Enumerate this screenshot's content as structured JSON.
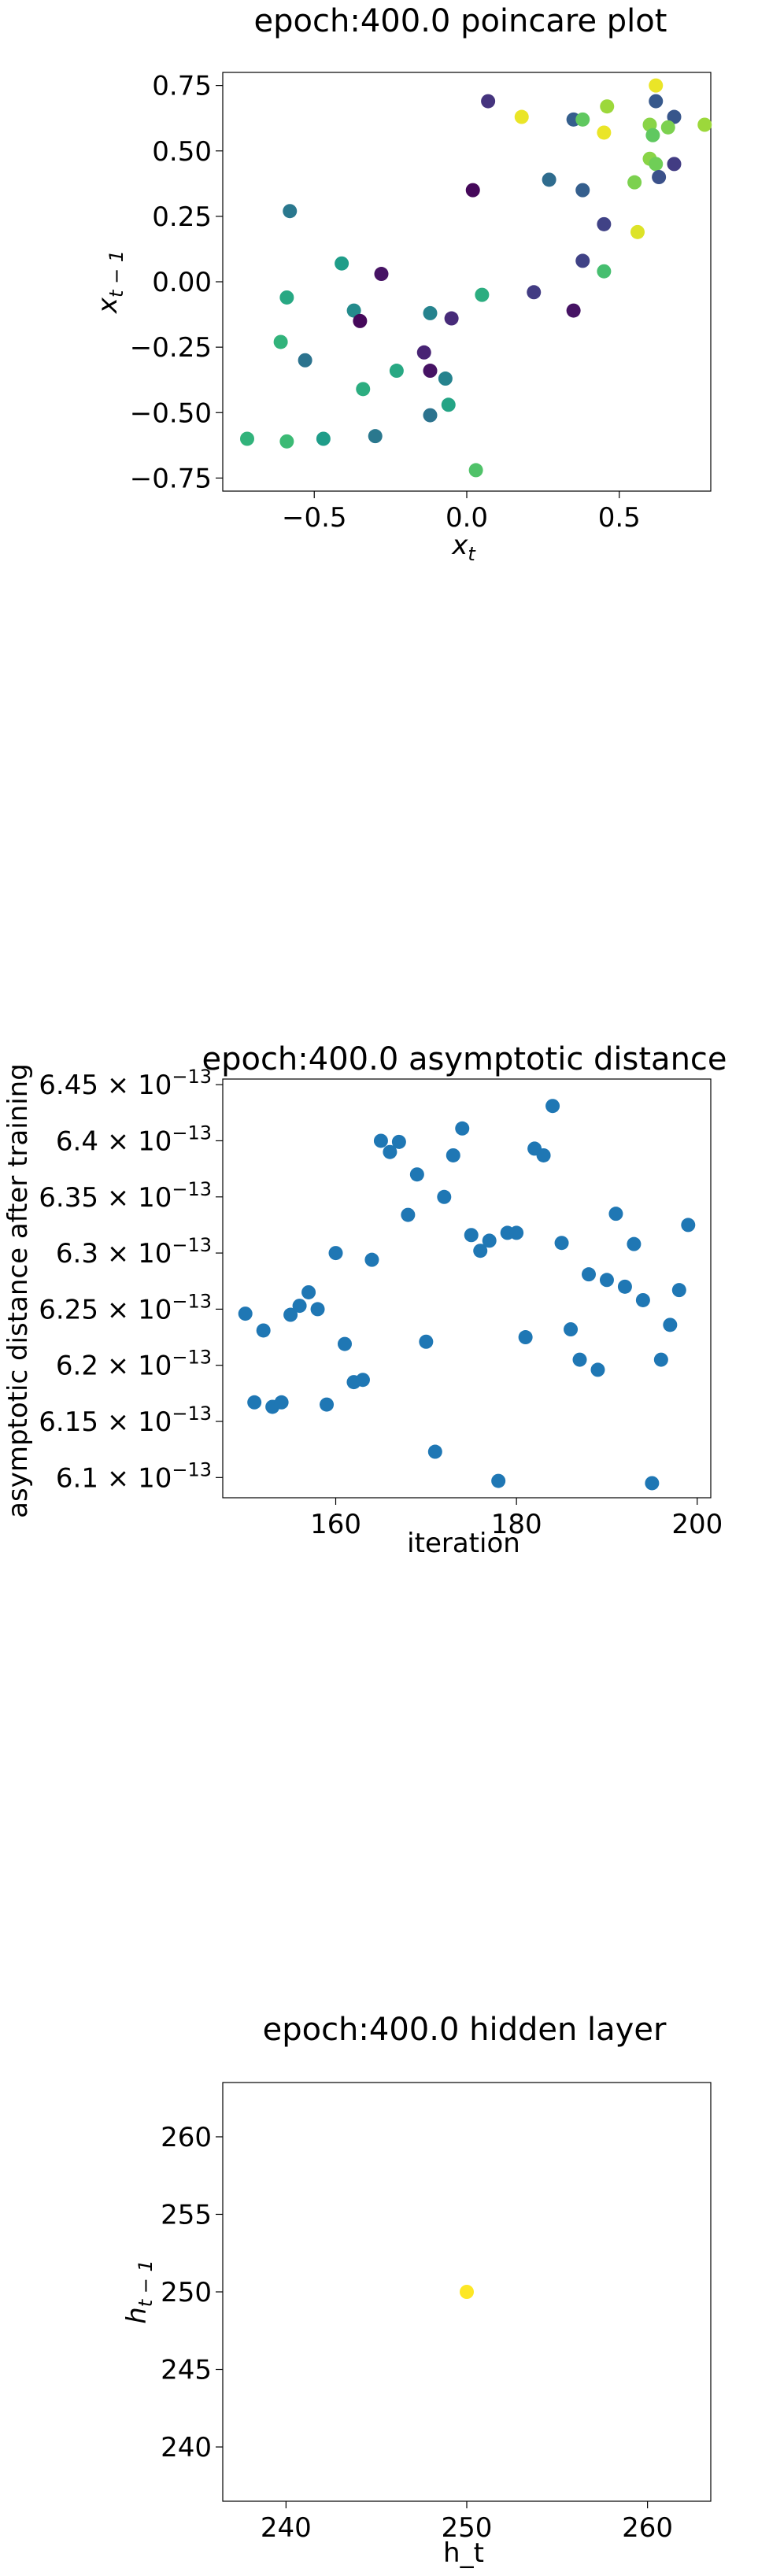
{
  "chart_data": [
    {
      "type": "scatter",
      "title": "epoch:400.0 poincare plot",
      "xlabel": "x_t",
      "ylabel": "x_{t-1}",
      "xlim": [
        -0.8,
        0.8
      ],
      "ylim": [
        -0.8,
        0.8
      ],
      "x_ticks": [
        -0.5,
        0.0,
        0.5
      ],
      "x_tick_labels": [
        "−0.5",
        "0.0",
        "0.5"
      ],
      "y_ticks": [
        0.75,
        0.5,
        0.25,
        0.0,
        -0.25,
        -0.5,
        -0.75
      ],
      "y_tick_labels": [
        "0.75",
        "0.50",
        "0.25",
        "0.00",
        "−0.25",
        "−0.50",
        "−0.75"
      ],
      "colormap": "viridis",
      "points": [
        {
          "x": 0.07,
          "y": 0.69,
          "c": 0.15
        },
        {
          "x": 0.18,
          "y": 0.63,
          "c": 0.97
        },
        {
          "x": 0.35,
          "y": 0.62,
          "c": 0.3
        },
        {
          "x": 0.38,
          "y": 0.62,
          "c": 0.75
        },
        {
          "x": 0.46,
          "y": 0.67,
          "c": 0.85
        },
        {
          "x": 0.45,
          "y": 0.57,
          "c": 0.97
        },
        {
          "x": 0.62,
          "y": 0.75,
          "c": 0.97
        },
        {
          "x": 0.62,
          "y": 0.69,
          "c": 0.28
        },
        {
          "x": 0.68,
          "y": 0.63,
          "c": 0.27
        },
        {
          "x": 0.6,
          "y": 0.6,
          "c": 0.82
        },
        {
          "x": 0.66,
          "y": 0.59,
          "c": 0.8
        },
        {
          "x": 0.78,
          "y": 0.6,
          "c": 0.85
        },
        {
          "x": 0.61,
          "y": 0.56,
          "c": 0.75
        },
        {
          "x": 0.6,
          "y": 0.47,
          "c": 0.82
        },
        {
          "x": 0.62,
          "y": 0.45,
          "c": 0.78
        },
        {
          "x": 0.68,
          "y": 0.45,
          "c": 0.18
        },
        {
          "x": 0.63,
          "y": 0.4,
          "c": 0.25
        },
        {
          "x": 0.55,
          "y": 0.38,
          "c": 0.8
        },
        {
          "x": 0.27,
          "y": 0.39,
          "c": 0.35
        },
        {
          "x": 0.38,
          "y": 0.35,
          "c": 0.3
        },
        {
          "x": 0.02,
          "y": 0.35,
          "c": 0.02
        },
        {
          "x": 0.45,
          "y": 0.22,
          "c": 0.2
        },
        {
          "x": 0.56,
          "y": 0.19,
          "c": 0.95
        },
        {
          "x": -0.58,
          "y": 0.27,
          "c": 0.4
        },
        {
          "x": 0.38,
          "y": 0.08,
          "c": 0.2
        },
        {
          "x": 0.45,
          "y": 0.04,
          "c": 0.7
        },
        {
          "x": -0.41,
          "y": 0.07,
          "c": 0.55
        },
        {
          "x": -0.28,
          "y": 0.03,
          "c": 0.05
        },
        {
          "x": -0.59,
          "y": -0.06,
          "c": 0.6
        },
        {
          "x": 0.22,
          "y": -0.04,
          "c": 0.18
        },
        {
          "x": 0.05,
          "y": -0.05,
          "c": 0.62
        },
        {
          "x": 0.35,
          "y": -0.11,
          "c": 0.05
        },
        {
          "x": -0.37,
          "y": -0.11,
          "c": 0.48
        },
        {
          "x": -0.12,
          "y": -0.12,
          "c": 0.45
        },
        {
          "x": -0.05,
          "y": -0.14,
          "c": 0.12
        },
        {
          "x": -0.35,
          "y": -0.15,
          "c": 0.02
        },
        {
          "x": -0.61,
          "y": -0.23,
          "c": 0.65
        },
        {
          "x": -0.14,
          "y": -0.27,
          "c": 0.1
        },
        {
          "x": -0.53,
          "y": -0.3,
          "c": 0.38
        },
        {
          "x": -0.12,
          "y": -0.34,
          "c": 0.05
        },
        {
          "x": -0.23,
          "y": -0.34,
          "c": 0.6
        },
        {
          "x": -0.07,
          "y": -0.37,
          "c": 0.45
        },
        {
          "x": -0.34,
          "y": -0.41,
          "c": 0.62
        },
        {
          "x": -0.06,
          "y": -0.47,
          "c": 0.58
        },
        {
          "x": -0.12,
          "y": -0.51,
          "c": 0.38
        },
        {
          "x": -0.3,
          "y": -0.59,
          "c": 0.4
        },
        {
          "x": -0.47,
          "y": -0.6,
          "c": 0.55
        },
        {
          "x": -0.72,
          "y": -0.6,
          "c": 0.65
        },
        {
          "x": -0.59,
          "y": -0.61,
          "c": 0.68
        },
        {
          "x": 0.03,
          "y": -0.72,
          "c": 0.72
        }
      ]
    },
    {
      "type": "scatter",
      "title": "epoch:400.0 asymptotic distance",
      "xlabel": "iteration",
      "ylabel": "asymptotic distance after training",
      "xlim": [
        147.5,
        201.5
      ],
      "ylim": [
        6.082e-13,
        6.455e-13
      ],
      "x_ticks": [
        160,
        180,
        200
      ],
      "x_tick_labels": [
        "160",
        "180",
        "200"
      ],
      "y_ticks": [
        6.1e-13,
        6.15e-13,
        6.2e-13,
        6.25e-13,
        6.3e-13,
        6.35e-13,
        6.4e-13,
        6.45e-13
      ],
      "y_tick_mantissas": [
        "6.1",
        "6.15",
        "6.2",
        "6.25",
        "6.3",
        "6.35",
        "6.4",
        "6.45"
      ],
      "y_tick_exponent_base": "× 10",
      "y_tick_exponent": "−13",
      "color": "#1f77b4",
      "points": [
        {
          "x": 150,
          "y": 6.246e-13
        },
        {
          "x": 151,
          "y": 6.167e-13
        },
        {
          "x": 152,
          "y": 6.231e-13
        },
        {
          "x": 153,
          "y": 6.163e-13
        },
        {
          "x": 154,
          "y": 6.167e-13
        },
        {
          "x": 155,
          "y": 6.245e-13
        },
        {
          "x": 156,
          "y": 6.253e-13
        },
        {
          "x": 157,
          "y": 6.265e-13
        },
        {
          "x": 158,
          "y": 6.25e-13
        },
        {
          "x": 159,
          "y": 6.165e-13
        },
        {
          "x": 160,
          "y": 6.3e-13
        },
        {
          "x": 161,
          "y": 6.219e-13
        },
        {
          "x": 162,
          "y": 6.185e-13
        },
        {
          "x": 163,
          "y": 6.187e-13
        },
        {
          "x": 164,
          "y": 6.294e-13
        },
        {
          "x": 165,
          "y": 6.4e-13
        },
        {
          "x": 166,
          "y": 6.39e-13
        },
        {
          "x": 167,
          "y": 6.399e-13
        },
        {
          "x": 168,
          "y": 6.334e-13
        },
        {
          "x": 169,
          "y": 6.37e-13
        },
        {
          "x": 170,
          "y": 6.221e-13
        },
        {
          "x": 171,
          "y": 6.123e-13
        },
        {
          "x": 172,
          "y": 6.35e-13
        },
        {
          "x": 173,
          "y": 6.387e-13
        },
        {
          "x": 174,
          "y": 6.411e-13
        },
        {
          "x": 175,
          "y": 6.316e-13
        },
        {
          "x": 176,
          "y": 6.302e-13
        },
        {
          "x": 177,
          "y": 6.311e-13
        },
        {
          "x": 178,
          "y": 6.097e-13
        },
        {
          "x": 179,
          "y": 6.318e-13
        },
        {
          "x": 180,
          "y": 6.318e-13
        },
        {
          "x": 181,
          "y": 6.225e-13
        },
        {
          "x": 182,
          "y": 6.393e-13
        },
        {
          "x": 183,
          "y": 6.387e-13
        },
        {
          "x": 184,
          "y": 6.431e-13
        },
        {
          "x": 185,
          "y": 6.309e-13
        },
        {
          "x": 186,
          "y": 6.232e-13
        },
        {
          "x": 187,
          "y": 6.205e-13
        },
        {
          "x": 188,
          "y": 6.281e-13
        },
        {
          "x": 189,
          "y": 6.196e-13
        },
        {
          "x": 190,
          "y": 6.276e-13
        },
        {
          "x": 191,
          "y": 6.335e-13
        },
        {
          "x": 192,
          "y": 6.27e-13
        },
        {
          "x": 193,
          "y": 6.308e-13
        },
        {
          "x": 194,
          "y": 6.258e-13
        },
        {
          "x": 195,
          "y": 6.095e-13
        },
        {
          "x": 196,
          "y": 6.205e-13
        },
        {
          "x": 197,
          "y": 6.236e-13
        },
        {
          "x": 198,
          "y": 6.267e-13
        },
        {
          "x": 199,
          "y": 6.325e-13
        }
      ]
    },
    {
      "type": "scatter",
      "title": "epoch:400.0 hidden layer",
      "xlabel": "h_t",
      "ylabel": "h_{t-1}",
      "xlim": [
        236.5,
        263.5
      ],
      "ylim": [
        236.5,
        263.5
      ],
      "x_ticks": [
        240,
        250,
        260
      ],
      "x_tick_labels": [
        "240",
        "250",
        "260"
      ],
      "y_ticks": [
        260,
        255,
        250,
        245,
        240
      ],
      "y_tick_labels": [
        "260",
        "255",
        "250",
        "245",
        "240"
      ],
      "color": "#fde725",
      "points": [
        {
          "x": 250,
          "y": 250
        }
      ]
    }
  ]
}
